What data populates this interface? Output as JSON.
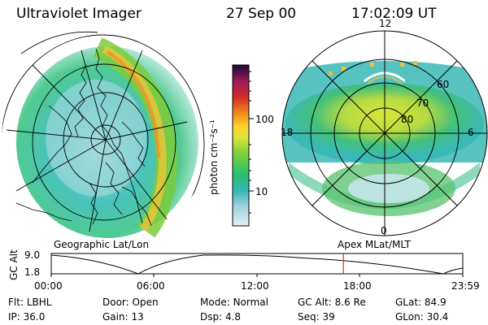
{
  "header": {
    "instrument": "Ultraviolet Imager",
    "date": "27 Sep 00",
    "time": "17:02:09 UT"
  },
  "panels": {
    "left_label": "Geographic Lat/Lon",
    "right_label": "Apex MLat/MLT"
  },
  "colorbar": {
    "label": "photon cm⁻²s⁻¹",
    "ticks": [
      "100",
      "10"
    ]
  },
  "polar": {
    "mlt_labels": [
      "12",
      "18",
      "6",
      "0"
    ],
    "lat_labels": [
      "60",
      "70",
      "80"
    ]
  },
  "altitude_plot": {
    "ylabel": "GC Alt",
    "y_ticks": [
      "9.0",
      "1.8"
    ],
    "x_ticks": [
      "00:00",
      "06:00",
      "12:00",
      "18:00",
      "23:59"
    ],
    "current_time_hours": 17.04
  },
  "info": {
    "row1": [
      {
        "key": "Flt:",
        "value": "LBHL"
      },
      {
        "key": "Door:",
        "value": "Open"
      },
      {
        "key": "Mode:",
        "value": "Normal"
      },
      {
        "key": "GC Alt:",
        "value": "8.6 Re"
      },
      {
        "key": "GLat:",
        "value": "84.9"
      }
    ],
    "row2": [
      {
        "key": "IP:",
        "value": "36.0"
      },
      {
        "key": "Gain:",
        "value": "13"
      },
      {
        "key": "Dsp:",
        "value": "4.8"
      },
      {
        "key": "Seq:",
        "value": "39"
      },
      {
        "key": "GLon:",
        "value": "30.4"
      }
    ]
  }
}
